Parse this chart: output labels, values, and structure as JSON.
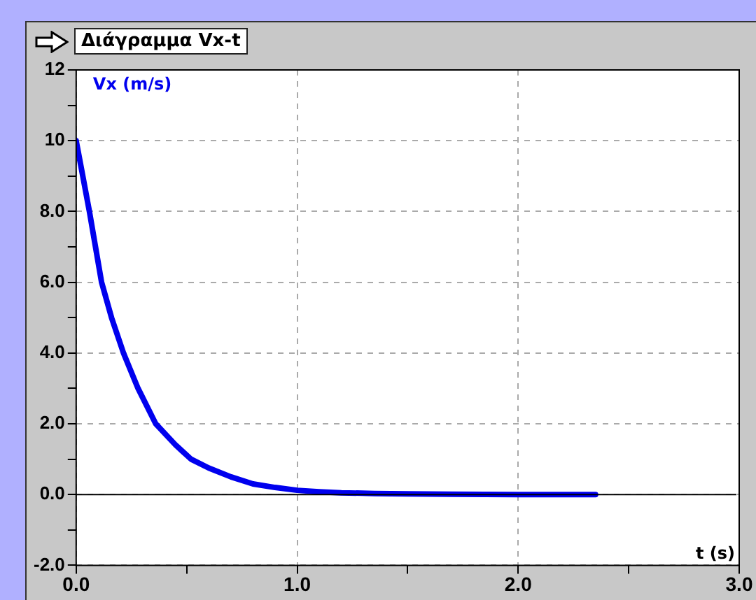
{
  "chart_data": {
    "type": "line",
    "title": "Διάγραμμα Vx-t",
    "xlabel": "t (s)",
    "ylabel": "Vx (m/s)",
    "x": [
      0,
      0.03,
      0.06,
      0.115,
      0.16,
      0.214,
      0.28,
      0.36,
      0.45,
      0.52,
      0.6,
      0.7,
      0.8,
      0.9,
      1.0,
      1.1,
      1.2,
      1.35,
      1.5,
      1.7,
      2.0,
      2.35
    ],
    "series": [
      {
        "color": "#0000ee",
        "values": [
          10,
          9,
          8,
          6,
          5,
          4,
          3,
          2,
          1.4,
          1,
          0.75,
          0.5,
          0.3,
          0.2,
          0.12,
          0.08,
          0.05,
          0.03,
          0.02,
          0.01,
          0,
          0
        ]
      }
    ],
    "xlim": [
      0,
      3
    ],
    "ylim": [
      -2,
      12
    ],
    "xticks": [
      {
        "value": 0,
        "label": "0.0"
      },
      {
        "value": 0.5,
        "label": null
      },
      {
        "value": 1,
        "label": "1.0"
      },
      {
        "value": 1.5,
        "label": null
      },
      {
        "value": 2,
        "label": "2.0"
      },
      {
        "value": 2.5,
        "label": null
      },
      {
        "value": 3,
        "label": "3.0"
      }
    ],
    "yticks": [
      {
        "value": -2,
        "label": "-2.0"
      },
      {
        "value": -1,
        "label": null
      },
      {
        "value": 0,
        "label": "0.0"
      },
      {
        "value": 1,
        "label": null
      },
      {
        "value": 2,
        "label": "2.0"
      },
      {
        "value": 3,
        "label": null
      },
      {
        "value": 4,
        "label": "4.0"
      },
      {
        "value": 5,
        "label": null
      },
      {
        "value": 6,
        "label": "6.0"
      },
      {
        "value": 7,
        "label": null
      },
      {
        "value": 8,
        "label": "8.0"
      },
      {
        "value": 9,
        "label": null
      },
      {
        "value": 10,
        "label": "10"
      },
      {
        "value": 11,
        "label": null
      },
      {
        "value": 12,
        "label": "12"
      }
    ],
    "grid": true,
    "legend": false,
    "marker": "none",
    "line_style": "solid"
  }
}
